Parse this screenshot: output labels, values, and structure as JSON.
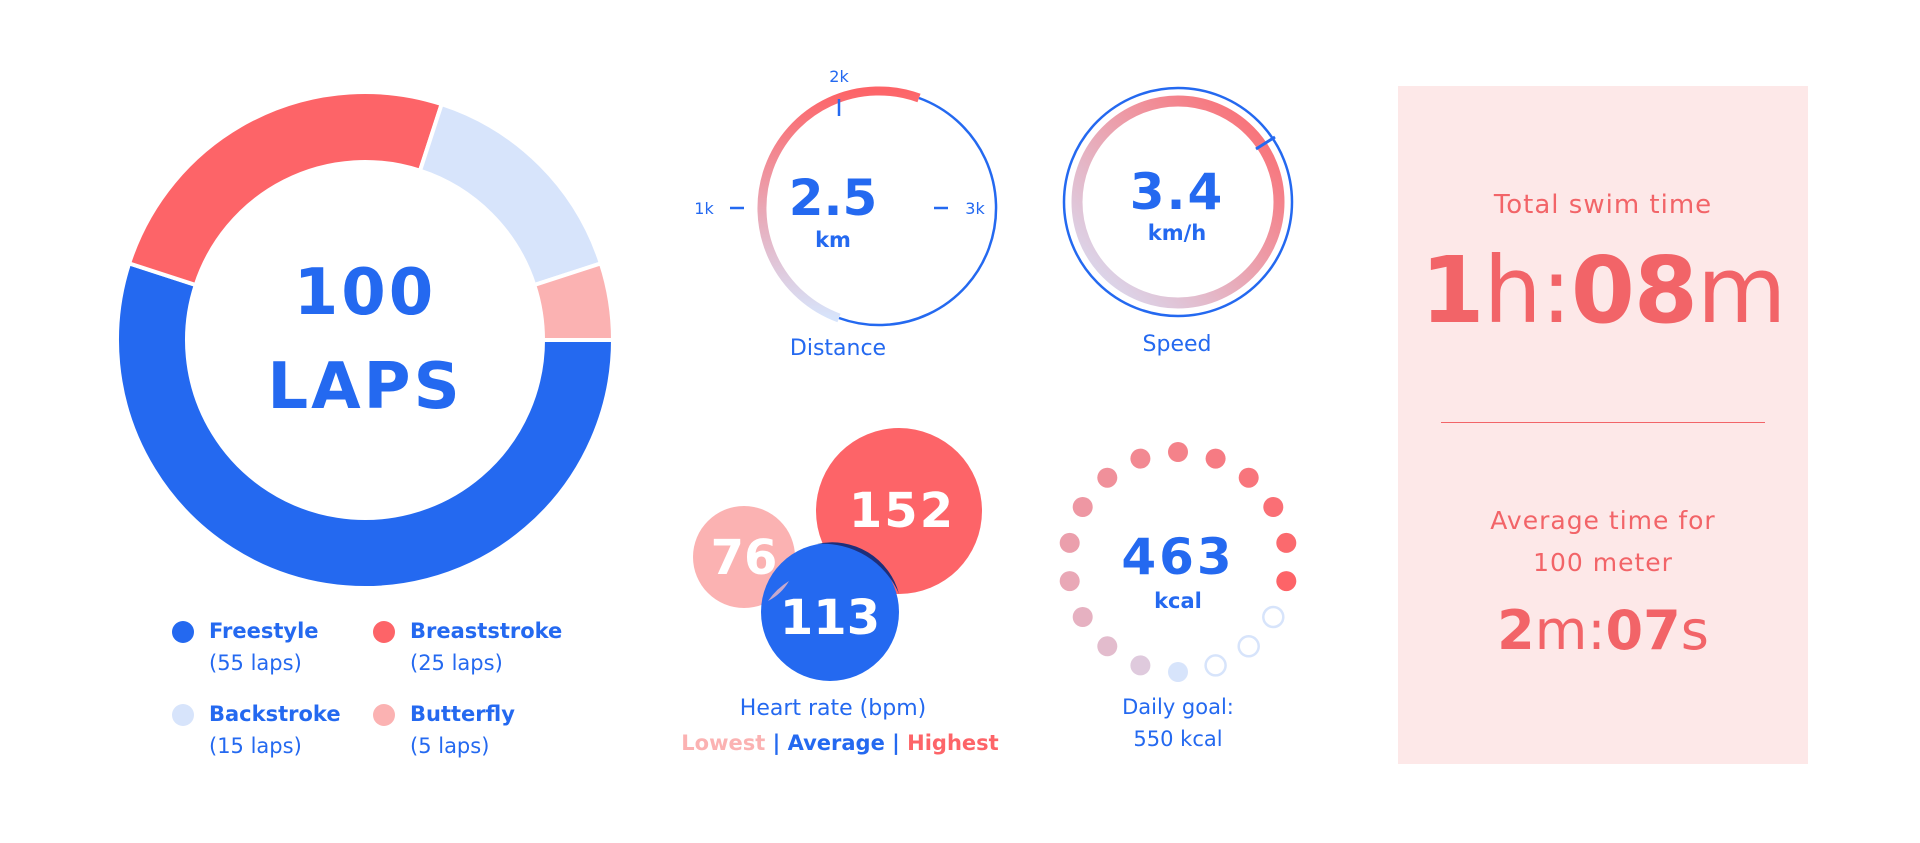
{
  "colors": {
    "blue": "#2469f0",
    "red": "#fd6468",
    "light_blue": "#d7e4fb",
    "pink": "#fbb2b2",
    "panel_bg": "#fde8e8",
    "dark_overlap": "#1e2f7a"
  },
  "chart_data": [
    {
      "type": "pie",
      "title": "100 LAPS",
      "center_value": "100",
      "center_unit": "LAPS",
      "slices": [
        {
          "name": "Freestyle",
          "value": 55,
          "sub": "(55 laps)",
          "color": "#2469f0"
        },
        {
          "name": "Breaststroke",
          "value": 25,
          "sub": "(25 laps)",
          "color": "#fd6468"
        },
        {
          "name": "Backstroke",
          "value": 15,
          "sub": "(15 laps)",
          "color": "#d7e4fb"
        },
        {
          "name": "Butterfly",
          "value": 5,
          "sub": "(5 laps)",
          "color": "#fbb2b2"
        }
      ]
    },
    {
      "type": "gauge",
      "label": "Distance",
      "value": 2.5,
      "value_text": "2.5",
      "unit": "km",
      "ticks": [
        "1k",
        "2k",
        "3k"
      ]
    },
    {
      "type": "gauge",
      "label": "Speed",
      "value": 3.4,
      "value_text": "3.4",
      "unit": "km/h"
    },
    {
      "type": "bubble",
      "label": "Heart rate (bpm)",
      "series": [
        {
          "name": "Lowest",
          "value": 76
        },
        {
          "name": "Average",
          "value": 113
        },
        {
          "name": "Highest",
          "value": 152
        }
      ]
    },
    {
      "type": "progress",
      "value": 463,
      "value_text": "463",
      "unit": "kcal",
      "goal_line1": "Daily goal:",
      "goal_line2": "550 kcal",
      "goal": 550
    }
  ],
  "swim": {
    "total_title": "Total swim time",
    "total": {
      "h_num": "1",
      "h_unit": "h:",
      "m_num": "08",
      "m_unit": "m"
    },
    "avg_title_line1": "Average time for",
    "avg_title_line2": "100 meter",
    "avg": {
      "m_num": "2",
      "m_unit": "m:",
      "s_num": "07",
      "s_unit": "s"
    }
  },
  "heart_keys": {
    "lowest": "Lowest",
    "sep": " | ",
    "average": "Average",
    "highest": "Highest"
  }
}
